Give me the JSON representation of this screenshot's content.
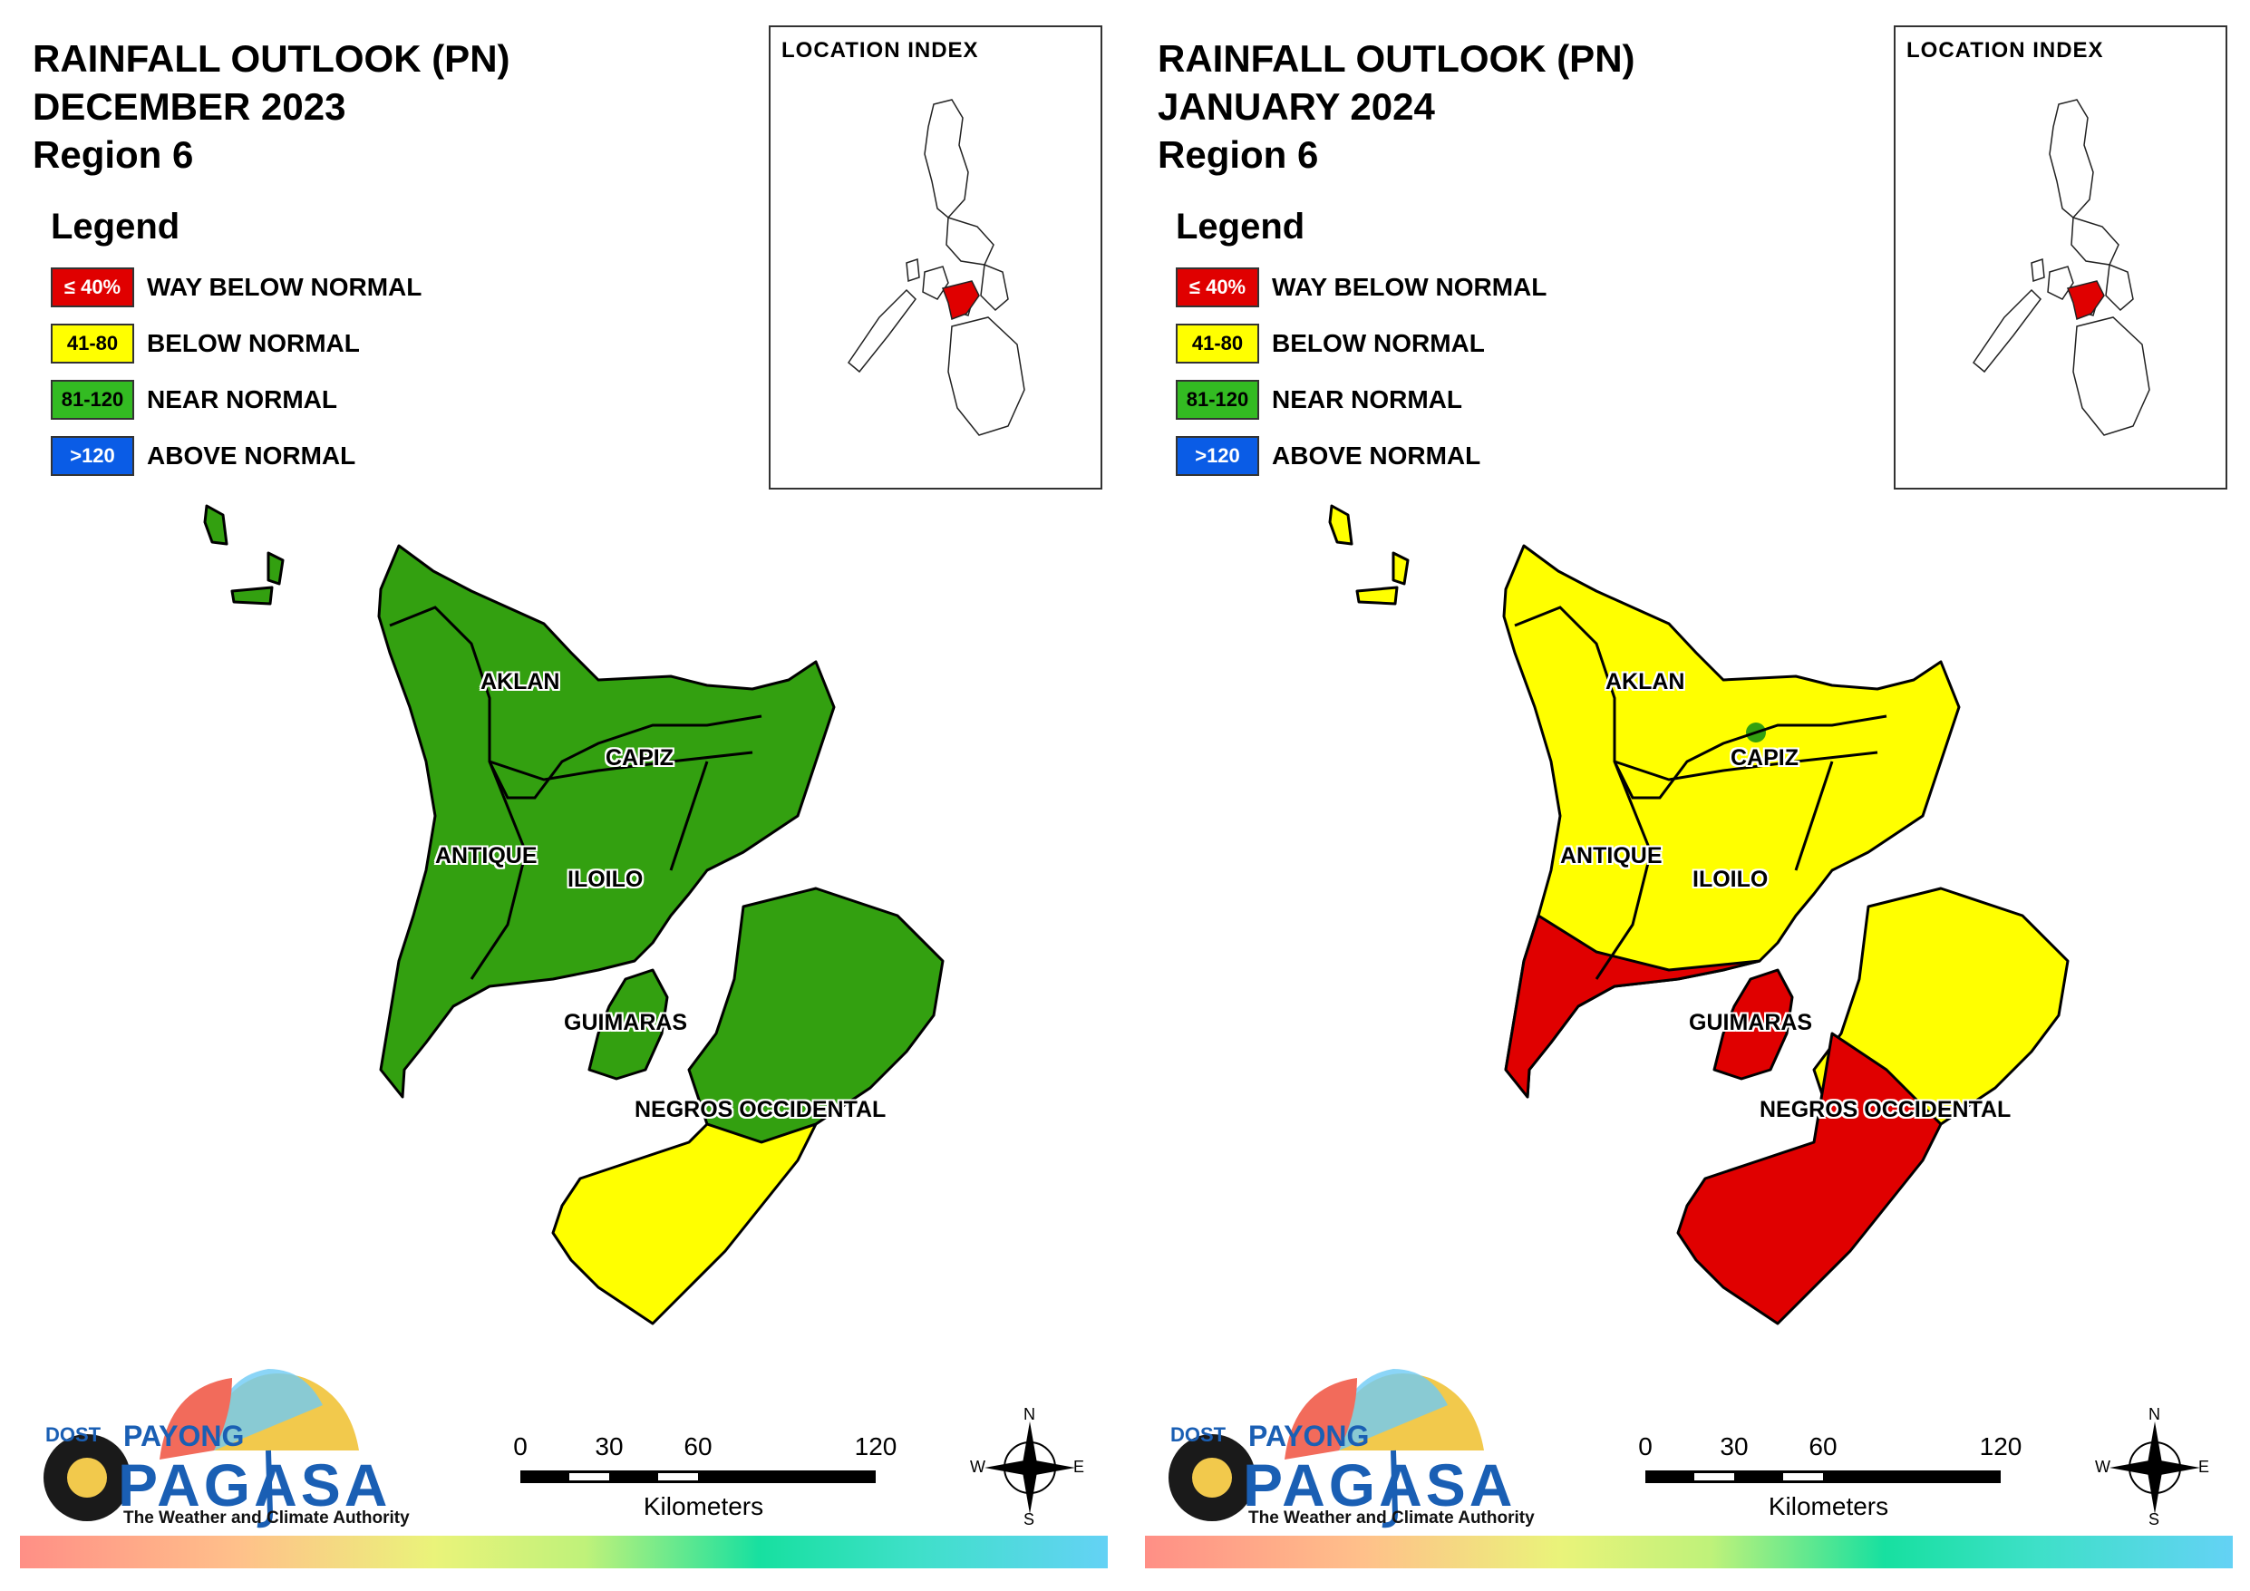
{
  "legend": {
    "title": "Legend",
    "items": [
      {
        "range": "≤ 40%",
        "label": "WAY BELOW NORMAL",
        "color": "#e00000",
        "text_color": "#ffffff"
      },
      {
        "range": "41-80",
        "label": "BELOW NORMAL",
        "color": "#ffff00",
        "text_color": "#000000"
      },
      {
        "range": "81-120",
        "label": "NEAR NORMAL",
        "color": "#33bb22",
        "text_color": "#000000"
      },
      {
        "range": ">120",
        "label": "ABOVE NORMAL",
        "color": "#0a5ce6",
        "text_color": "#ffffff"
      }
    ]
  },
  "location_index_title": "LOCATION INDEX",
  "provinces": {
    "aklan": "AKLAN",
    "capiz": "CAPIZ",
    "antique": "ANTIQUE",
    "iloilo": "ILOILO",
    "guimaras": "GUIMARAS",
    "negros": "NEGROS OCCIDENTAL"
  },
  "scale": {
    "ticks": [
      "0",
      "30",
      "60",
      "120"
    ],
    "unit": "Kilometers"
  },
  "compass": {
    "n": "N",
    "e": "E",
    "s": "S",
    "w": "W"
  },
  "branding": {
    "dost": "DOST",
    "payong": "PAYONG",
    "pagasa": "PAGASA",
    "tagline": "The Weather and Climate Authority"
  },
  "maps": [
    {
      "title_line1": "RAINFALL OUTLOOK (PN)",
      "title_line2": "DECEMBER 2023",
      "title_line3": "Region 6",
      "classification": {
        "aklan": "NEAR NORMAL",
        "capiz": "NEAR NORMAL",
        "antique": "NEAR NORMAL",
        "iloilo": "NEAR NORMAL",
        "guimaras": "NEAR NORMAL",
        "negros_north": "NEAR NORMAL",
        "negros_south": "BELOW NORMAL"
      }
    },
    {
      "title_line1": "RAINFALL OUTLOOK (PN)",
      "title_line2": "JANUARY 2024",
      "title_line3": "Region 6",
      "classification": {
        "aklan": "BELOW NORMAL",
        "capiz": "BELOW NORMAL",
        "antique_north": "BELOW NORMAL",
        "antique_south": "WAY BELOW NORMAL",
        "iloilo_north": "BELOW NORMAL",
        "iloilo_south": "WAY BELOW NORMAL",
        "guimaras": "WAY BELOW NORMAL",
        "negros_north": "BELOW NORMAL",
        "negros_south": "WAY BELOW NORMAL",
        "capiz_spot": "NEAR NORMAL"
      }
    }
  ]
}
